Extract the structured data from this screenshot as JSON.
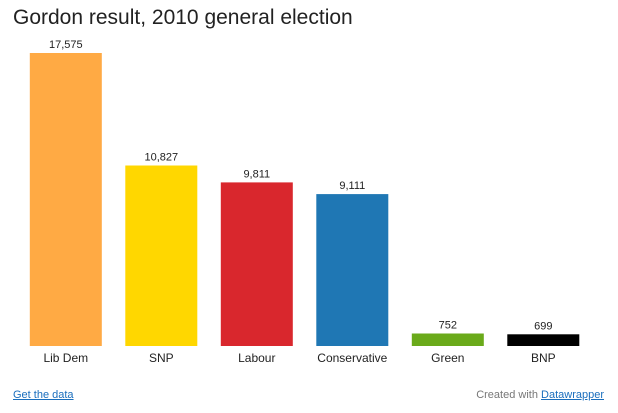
{
  "chart_data": {
    "type": "bar",
    "title": "Gordon result, 2010 general election",
    "categories": [
      "Lib Dem",
      "SNP",
      "Labour",
      "Conservative",
      "Green",
      "BNP"
    ],
    "values": [
      17575,
      10827,
      9811,
      9111,
      752,
      699
    ],
    "value_labels": [
      "17,575",
      "10,827",
      "9,811",
      "9,111",
      "752",
      "699"
    ],
    "colors": [
      "#FFAA44",
      "#FFD700",
      "#D9272D",
      "#1F77B4",
      "#6AAA1A",
      "#000000"
    ],
    "ylim": [
      0,
      17575
    ],
    "grid": false,
    "legend": "none"
  },
  "footer": {
    "data_link": "Get the data",
    "credit_prefix": "Created with ",
    "credit_link": "Datawrapper"
  }
}
